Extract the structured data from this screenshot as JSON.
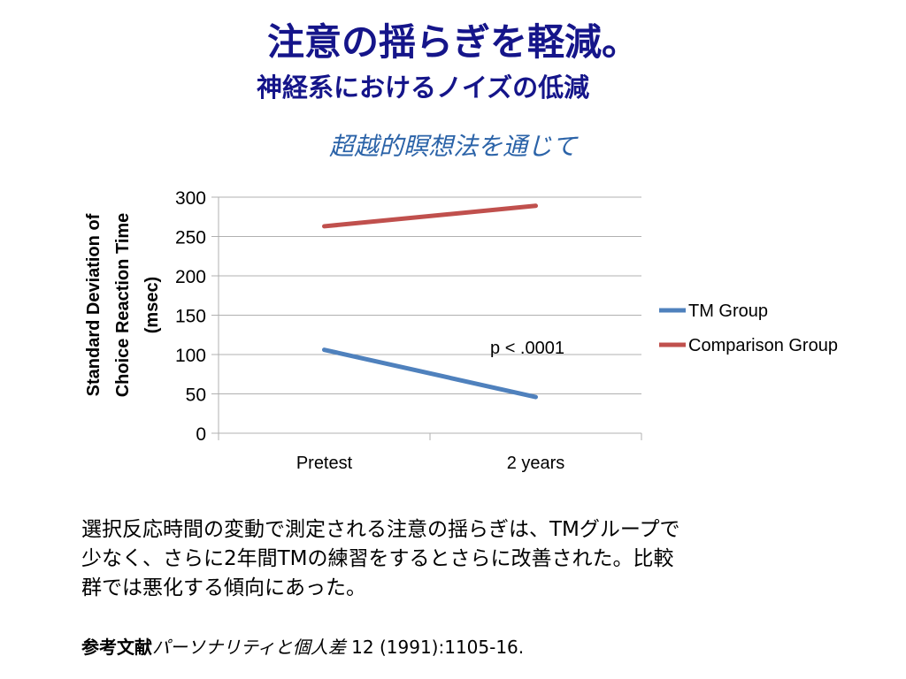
{
  "slide": {
    "title": "注意の揺らぎを軽減。",
    "subtitle": "神経系におけるノイズの低減",
    "tagline": "超越的瞑想法を通じて",
    "body_lines": [
      "選択反応時間の変動で測定される注意の揺らぎは、TMグループで",
      "少なく、さらに2年間TMの練習をするとさらに改善された。比較",
      "群では悪化する傾向にあった。"
    ],
    "reference": {
      "label": "参考文献",
      "journal": "パーソナリティと個人差",
      "citation": "12 (1991):1105-16."
    }
  },
  "chart_data": {
    "type": "line",
    "categories": [
      "Pretest",
      "2 years"
    ],
    "series": [
      {
        "name": "TM Group",
        "values": [
          106,
          46
        ],
        "color": "#4f81bd"
      },
      {
        "name": "Comparison Group",
        "values": [
          263,
          289
        ],
        "color": "#c0504d"
      }
    ],
    "ylabel_lines": [
      "Standard Deviation of",
      "Choice Reaction Time",
      "(msec)"
    ],
    "ylim": [
      0,
      300
    ],
    "yticks": [
      0,
      50,
      100,
      150,
      200,
      250,
      300
    ],
    "grid": true,
    "legend_position": "right",
    "annotation": "p < .0001"
  }
}
